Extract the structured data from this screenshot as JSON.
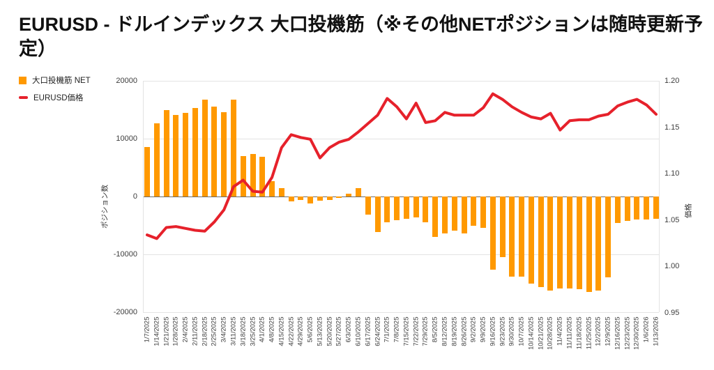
{
  "title": "EURUSD - ドルインデックス 大口投機筋（※その他NETポジションは随時更新予定）",
  "legend": [
    {
      "label": "大口投機筋 NET",
      "color": "#ff9900",
      "type": "square"
    },
    {
      "label": "EURUSD価格",
      "color": "#e6212b",
      "type": "line"
    }
  ],
  "left_axis": {
    "title": "ポジション数",
    "ticks": [
      "20000",
      "10000",
      "0",
      "-10000",
      "-20000"
    ],
    "min": -20000,
    "max": 20000
  },
  "right_axis": {
    "title": "価格",
    "ticks": [
      "1.20",
      "1.15",
      "1.10",
      "1.05",
      "1.00",
      "0.95"
    ],
    "min": 0.95,
    "max": 1.2
  },
  "chart_data": {
    "type": "bar",
    "combo": "bar+line",
    "grid": "horizontal",
    "legend_position": "left-top",
    "categories": [
      "1/7/2025",
      "1/14/2025",
      "1/21/2025",
      "1/28/2025",
      "2/4/2025",
      "2/11/2025",
      "2/18/2025",
      "2/25/2025",
      "3/4/2025",
      "3/11/2025",
      "3/18/2025",
      "3/25/2025",
      "4/1/2025",
      "4/8/2025",
      "4/15/2025",
      "4/22/2025",
      "4/29/2025",
      "5/6/2025",
      "5/13/2025",
      "5/20/2025",
      "5/27/2025",
      "6/3/2025",
      "6/10/2025",
      "6/17/2025",
      "6/24/2025",
      "7/1/2025",
      "7/8/2025",
      "7/15/2025",
      "7/22/2025",
      "7/29/2025",
      "8/5/2025",
      "8/12/2025",
      "8/19/2025",
      "8/26/2025",
      "9/2/2025",
      "9/9/2025",
      "9/16/2025",
      "9/23/2025",
      "9/30/2025",
      "10/7/2025",
      "10/14/2025",
      "10/21/2025",
      "10/28/2025",
      "11/4/2025",
      "11/11/2025",
      "11/18/2025",
      "11/25/2025",
      "12/2/2025",
      "12/9/2025",
      "12/16/2025",
      "12/23/2025",
      "12/30/2025",
      "1/6/2026",
      "1/13/2026"
    ],
    "series": [
      {
        "name": "大口投機筋 NET",
        "type": "bar",
        "axis": "left",
        "color": "#ff9900",
        "ylim": [
          -20000,
          20000
        ],
        "values": [
          8500,
          12600,
          14900,
          14100,
          14400,
          15300,
          16700,
          15600,
          14600,
          16800,
          7000,
          7400,
          6900,
          2700,
          1500,
          -900,
          -650,
          -1150,
          -700,
          -600,
          -250,
          500,
          1400,
          -3100,
          -6200,
          -4400,
          -4100,
          -3900,
          -3650,
          -4400,
          -7000,
          -6400,
          -5900,
          -6350,
          -5100,
          -5400,
          -12700,
          -10500,
          -13800,
          -13900,
          -15000,
          -15700,
          -16300,
          -15900,
          -15900,
          -16000,
          -16500,
          -16300,
          -14000,
          -4600,
          -4200,
          -4000,
          -4000,
          -3900
        ]
      },
      {
        "name": "EURUSD価格",
        "type": "line",
        "axis": "right",
        "color": "#e6212b",
        "ylim": [
          0.95,
          1.2
        ],
        "values": [
          1.034,
          1.03,
          1.042,
          1.043,
          1.041,
          1.039,
          1.038,
          1.048,
          1.061,
          1.086,
          1.093,
          1.081,
          1.08,
          1.096,
          1.128,
          1.142,
          1.139,
          1.137,
          1.117,
          1.128,
          1.134,
          1.137,
          1.145,
          1.154,
          1.163,
          1.181,
          1.172,
          1.159,
          1.176,
          1.155,
          1.157,
          1.166,
          1.163,
          1.163,
          1.163,
          1.171,
          1.186,
          1.18,
          1.172,
          1.166,
          1.161,
          1.159,
          1.165,
          1.147,
          1.157,
          1.158,
          1.158,
          1.162,
          1.164,
          1.173,
          1.177,
          1.18,
          1.174,
          1.164
        ]
      }
    ]
  }
}
